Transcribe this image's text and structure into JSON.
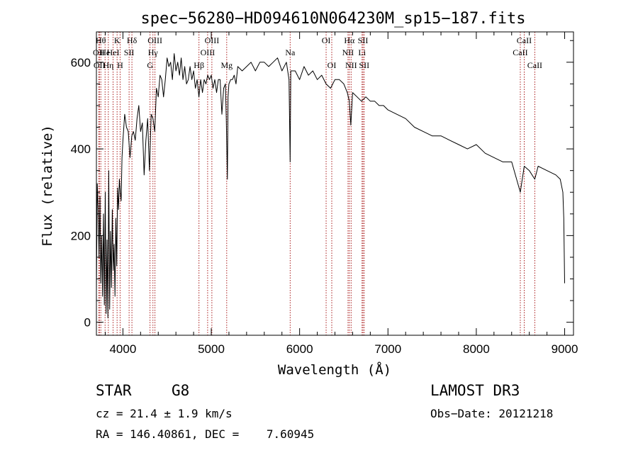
{
  "chart_data": {
    "type": "line",
    "title": "spec−56280−HD094610N064230M_sp15−187.fits",
    "xlabel": "Wavelength (Å)",
    "ylabel": "Flux (relative)",
    "xlim": [
      3700,
      9100
    ],
    "ylim": [
      -30,
      670
    ],
    "x_ticks": [
      4000,
      5000,
      6000,
      7000,
      8000,
      9000
    ],
    "x_tick_labels": [
      "4000",
      "5000",
      "6000",
      "7000",
      "8000",
      "9000"
    ],
    "y_ticks": [
      0,
      200,
      400,
      600
    ],
    "y_tick_labels": [
      "0",
      "200",
      "400",
      "600"
    ],
    "series": [
      {
        "name": "flux",
        "x": [
          3700,
          3710,
          3720,
          3730,
          3740,
          3750,
          3760,
          3770,
          3780,
          3790,
          3800,
          3810,
          3820,
          3830,
          3840,
          3850,
          3860,
          3870,
          3880,
          3890,
          3900,
          3910,
          3920,
          3930,
          3940,
          3950,
          3960,
          3970,
          3980,
          3990,
          4000,
          4020,
          4040,
          4060,
          4080,
          4100,
          4120,
          4140,
          4160,
          4180,
          4200,
          4220,
          4240,
          4260,
          4280,
          4300,
          4320,
          4340,
          4360,
          4380,
          4400,
          4420,
          4440,
          4460,
          4480,
          4500,
          4520,
          4540,
          4560,
          4580,
          4600,
          4620,
          4640,
          4660,
          4680,
          4700,
          4720,
          4740,
          4760,
          4780,
          4800,
          4820,
          4840,
          4860,
          4880,
          4900,
          4920,
          4940,
          4960,
          4980,
          5000,
          5020,
          5040,
          5060,
          5080,
          5100,
          5120,
          5140,
          5160,
          5170,
          5183,
          5190,
          5200,
          5220,
          5240,
          5260,
          5280,
          5300,
          5350,
          5400,
          5450,
          5500,
          5550,
          5600,
          5650,
          5700,
          5750,
          5800,
          5850,
          5880,
          5893,
          5900,
          5950,
          6000,
          6050,
          6100,
          6150,
          6200,
          6250,
          6300,
          6350,
          6400,
          6450,
          6500,
          6540,
          6563,
          6580,
          6600,
          6650,
          6700,
          6750,
          6800,
          6850,
          6900,
          6950,
          7000,
          7100,
          7200,
          7300,
          7400,
          7500,
          7600,
          7700,
          7800,
          7900,
          8000,
          8100,
          8200,
          8300,
          8400,
          8498,
          8542,
          8600,
          8662,
          8700,
          8800,
          8900,
          8950,
          8980,
          8990,
          9000
        ],
        "values": [
          70,
          320,
          260,
          150,
          290,
          90,
          200,
          60,
          250,
          40,
          300,
          20,
          190,
          10,
          350,
          30,
          210,
          80,
          260,
          120,
          180,
          60,
          240,
          130,
          310,
          260,
          330,
          300,
          280,
          380,
          420,
          480,
          450,
          440,
          380,
          430,
          440,
          420,
          470,
          500,
          440,
          460,
          340,
          420,
          470,
          350,
          480,
          470,
          440,
          540,
          520,
          570,
          560,
          520,
          560,
          610,
          590,
          600,
          560,
          620,
          580,
          600,
          570,
          610,
          560,
          590,
          550,
          560,
          590,
          560,
          580,
          540,
          560,
          520,
          560,
          530,
          560,
          550,
          570,
          560,
          570,
          540,
          560,
          530,
          560,
          560,
          480,
          540,
          550,
          470,
          330,
          520,
          550,
          560,
          560,
          570,
          550,
          590,
          580,
          590,
          600,
          580,
          600,
          600,
          590,
          600,
          610,
          580,
          600,
          560,
          370,
          580,
          580,
          560,
          590,
          570,
          580,
          560,
          570,
          550,
          540,
          560,
          560,
          550,
          530,
          510,
          455,
          530,
          520,
          510,
          520,
          510,
          510,
          500,
          500,
          490,
          480,
          470,
          450,
          440,
          430,
          430,
          420,
          410,
          400,
          410,
          390,
          380,
          370,
          370,
          300,
          360,
          350,
          330,
          360,
          350,
          340,
          330,
          300,
          240,
          90
        ]
      }
    ],
    "lines": [
      {
        "wl": 3727,
        "label": "OII",
        "row": 2
      },
      {
        "wl": 3734,
        "label": "OII",
        "row": 3
      },
      {
        "wl": 3750,
        "label": "Hθ",
        "row": 1
      },
      {
        "wl": 3798,
        "label": "He",
        "row": 2
      },
      {
        "wl": 3835,
        "label": "Hη",
        "row": 3
      },
      {
        "wl": 3889,
        "label": "HeI",
        "row": 2
      },
      {
        "wl": 3934,
        "label": "K",
        "row": 1
      },
      {
        "wl": 3968,
        "label": "H",
        "row": 3
      },
      {
        "wl": 4070,
        "label": "SII",
        "row": 2
      },
      {
        "wl": 4102,
        "label": "Hδ",
        "row": 1
      },
      {
        "wl": 4307,
        "label": "G",
        "row": 3
      },
      {
        "wl": 4340,
        "label": "Hγ",
        "row": 2
      },
      {
        "wl": 4363,
        "label": "OIII",
        "row": 1
      },
      {
        "wl": 4861,
        "label": "Hβ",
        "row": 3
      },
      {
        "wl": 4959,
        "label": "OIII",
        "row": 2
      },
      {
        "wl": 5007,
        "label": "OIII",
        "row": 1
      },
      {
        "wl": 5175,
        "label": "Mg",
        "row": 3
      },
      {
        "wl": 5893,
        "label": "Na",
        "row": 2
      },
      {
        "wl": 6300,
        "label": "OI",
        "row": 1
      },
      {
        "wl": 6364,
        "label": "OI",
        "row": 3
      },
      {
        "wl": 6548,
        "label": "NII",
        "row": 2
      },
      {
        "wl": 6563,
        "label": "Hα",
        "row": 1
      },
      {
        "wl": 6583,
        "label": "NII",
        "row": 3
      },
      {
        "wl": 6707,
        "label": "Li",
        "row": 2
      },
      {
        "wl": 6717,
        "label": "SII",
        "row": 1
      },
      {
        "wl": 6731,
        "label": "SII",
        "row": 3
      },
      {
        "wl": 8498,
        "label": "CaII",
        "row": 2
      },
      {
        "wl": 8542,
        "label": "CaII",
        "row": 1
      },
      {
        "wl": 8662,
        "label": "CaII",
        "row": 3
      }
    ],
    "colors": {
      "spectrum": "#000000",
      "line_markers": "#a00000",
      "axes": "#000000"
    }
  },
  "info": {
    "object_class": "STAR",
    "subclass": "G8",
    "survey": "LAMOST DR3",
    "redshift_text": "cz = 21.4 ± 1.9 km/s",
    "obs_date_text": "Obs−Date: 20121218",
    "coords_text": "RA = 146.40861, DEC =    7.60945"
  }
}
